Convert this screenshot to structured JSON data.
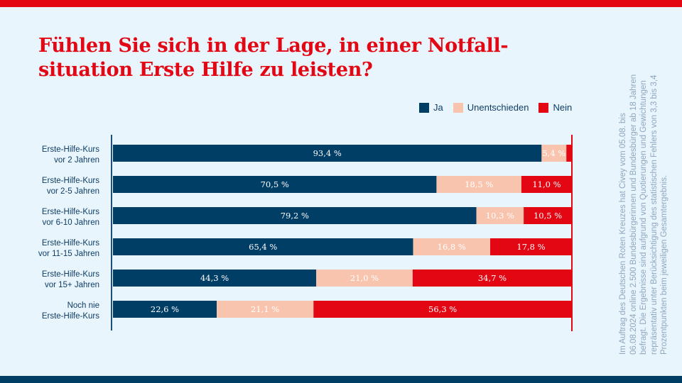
{
  "header": {
    "title": "Fühlen Sie sich in der Lage, in einer Notfall-situation Erste Hilfe zu leisten?"
  },
  "footnote": "Im Auftrag des Deutschen Roten Kreuzes hat Civey vom 05.08. bis 06.08.2024 online 2.500 Bundesbürgerinnen und Bundesbürger ab 18 Jahren befragt. Die Ergebnisse sind aufgrund von Quotierungen und Gewichtungen repräsentativ unter Berücksichtigung des statistischen Fehlers von 3,3 bis 3,4 Prozentpunkten beim jeweiligen Gesamtergebnis.",
  "colors": {
    "ja": "#003e66",
    "unentschieden": "#f9c4ae",
    "nein": "#e30613",
    "brand_red": "#e30613",
    "brand_navy": "#003e66"
  },
  "chart_data": {
    "type": "bar",
    "orientation": "horizontal",
    "stacked": true,
    "title": "Fühlen Sie sich in der Lage, in einer Notfall-situation Erste Hilfe zu leisten?",
    "xlabel": "",
    "ylabel": "",
    "xlim": [
      0,
      100
    ],
    "unit": "%",
    "grid": false,
    "legend_position": "top-right",
    "categories": [
      [
        "Erste-Hilfe-Kurs",
        "vor 2 Jahren"
      ],
      [
        "Erste-Hilfe-Kurs",
        "vor 2-5 Jahren"
      ],
      [
        "Erste-Hilfe-Kurs",
        "vor 6-10 Jahren"
      ],
      [
        "Erste-Hilfe-Kurs",
        "vor 11-15 Jahren"
      ],
      [
        "Erste-Hilfe-Kurs",
        "vor 15+ Jahren"
      ],
      [
        "Noch nie",
        "Erste-Hilfe-Kurs"
      ]
    ],
    "series": [
      {
        "name": "Ja",
        "key": "ja",
        "values": [
          93.4,
          70.5,
          79.2,
          65.4,
          44.3,
          22.6
        ],
        "labels": [
          "93,4 %",
          "70,5 %",
          "79,2 %",
          "65,4 %",
          "44,3 %",
          "22,6 %"
        ]
      },
      {
        "name": "Unentschieden",
        "key": "unentschieden",
        "values": [
          5.4,
          18.5,
          10.3,
          16.8,
          21.0,
          21.1
        ],
        "labels": [
          "5,4 %",
          "18,5 %",
          "10,3 %",
          "16,8 %",
          "21,0 %",
          "21,1 %"
        ]
      },
      {
        "name": "Nein",
        "key": "nein",
        "values": [
          1.2,
          11.0,
          10.5,
          17.8,
          34.7,
          56.3
        ],
        "labels": [
          "",
          "11,0 %",
          "10,5 %",
          "17,8 %",
          "34,7 %",
          "56,3 %"
        ]
      }
    ]
  }
}
